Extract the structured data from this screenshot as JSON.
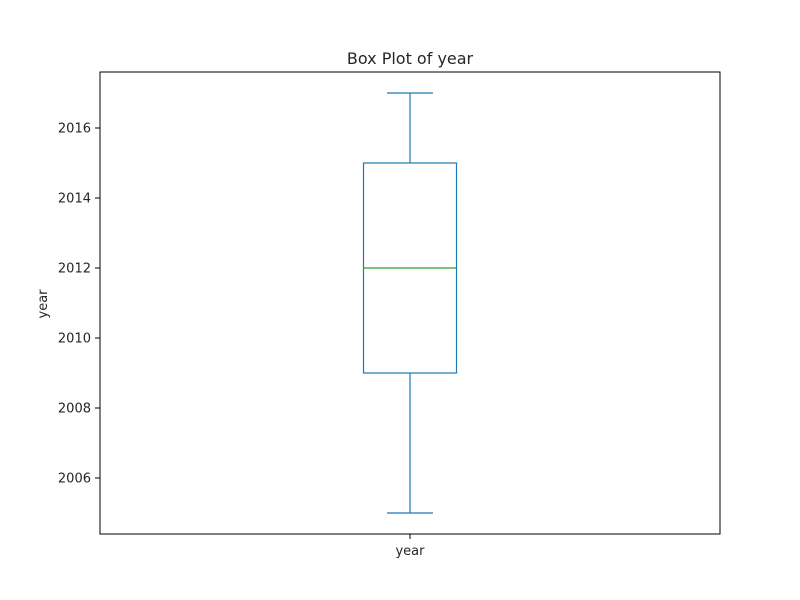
{
  "chart_data": {
    "type": "box",
    "title": "Box Plot of year",
    "xlabel": "",
    "ylabel": "year",
    "categories": [
      "year"
    ],
    "boxes": [
      {
        "category": "year",
        "whisker_low": 2005,
        "q1": 2009,
        "median": 2012,
        "q3": 2015,
        "whisker_high": 2017
      }
    ],
    "yticks": [
      2006,
      2008,
      2010,
      2012,
      2014,
      2016
    ],
    "ylim": [
      2004.4,
      2017.6
    ],
    "grid": false,
    "colors": {
      "box": "#1f77b4",
      "median": "#2ca02c",
      "axis": "#000000"
    }
  }
}
